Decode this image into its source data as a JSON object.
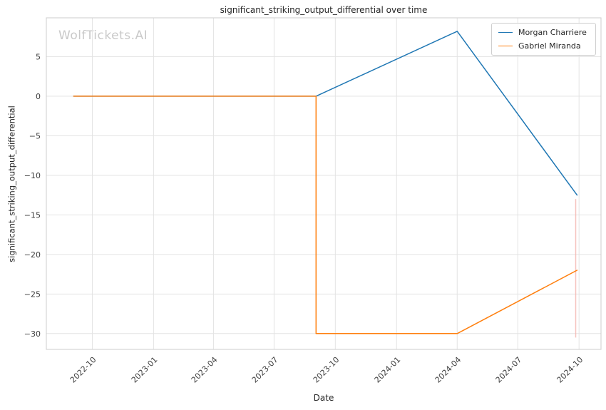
{
  "watermark": "WolfTickets.AI",
  "chart_data": {
    "type": "line",
    "title": "significant_striking_output_differential over time",
    "xlabel": "Date",
    "ylabel": "significant_striking_output_differential",
    "grid": true,
    "legend_position": "top-right",
    "x_domain": [
      "2022-07-24",
      "2024-11-03"
    ],
    "ylim": [
      -32,
      9.9
    ],
    "x_ticks": [
      "2022-10",
      "2023-01",
      "2023-04",
      "2023-07",
      "2023-10",
      "2024-01",
      "2024-04",
      "2024-07",
      "2024-10"
    ],
    "y_ticks": [
      5,
      0,
      -5,
      -10,
      -15,
      -20,
      -25,
      -30
    ],
    "series": [
      {
        "name": "Morgan Charriere",
        "color": "#1f77b4",
        "points": [
          [
            "2022-09-03",
            0
          ],
          [
            "2023-09-02",
            0
          ],
          [
            "2024-04-01",
            8.2
          ],
          [
            "2024-09-28",
            -12.5
          ]
        ]
      },
      {
        "name": "Gabriel Miranda",
        "color": "#ff7f0e",
        "points": [
          [
            "2022-09-03",
            0
          ],
          [
            "2023-09-02",
            0
          ],
          [
            "2023-09-02",
            -30
          ],
          [
            "2024-04-01",
            -30
          ],
          [
            "2024-09-28",
            -22
          ]
        ]
      }
    ],
    "event_line": {
      "date": "2024-09-26",
      "color": "#f5b5ae",
      "y_from": -13,
      "y_to": -30.5
    }
  }
}
